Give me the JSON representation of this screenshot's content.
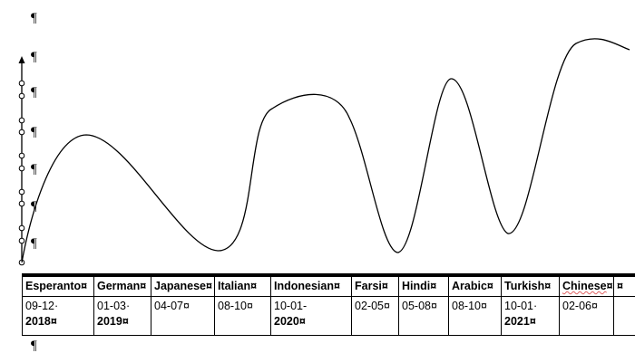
{
  "pilcrow": "¶",
  "cell_mark": "¤",
  "languages": [
    {
      "name": "Esperanto",
      "date": "09-12·",
      "year": "2018"
    },
    {
      "name": "German",
      "date": "01-03·",
      "year": "2019"
    },
    {
      "name": "Japanese",
      "date": "04-07",
      "year": ""
    },
    {
      "name": "Italian",
      "date": "08-10",
      "year": ""
    },
    {
      "name": "Indonesian",
      "date": "10-01-",
      "year": "2020"
    },
    {
      "name": "Farsi",
      "date": "02-05",
      "year": ""
    },
    {
      "name": "Hindi",
      "date": "05-08",
      "year": ""
    },
    {
      "name": "Arabic",
      "date": "08-10",
      "year": ""
    },
    {
      "name": "Turkish",
      "date": "10-01·",
      "year": "2021"
    },
    {
      "name": "Chinese",
      "date": "02-06",
      "year": ""
    }
  ],
  "colors": {
    "spellcheck_underline": "#e06060",
    "ink": "#000000"
  }
}
